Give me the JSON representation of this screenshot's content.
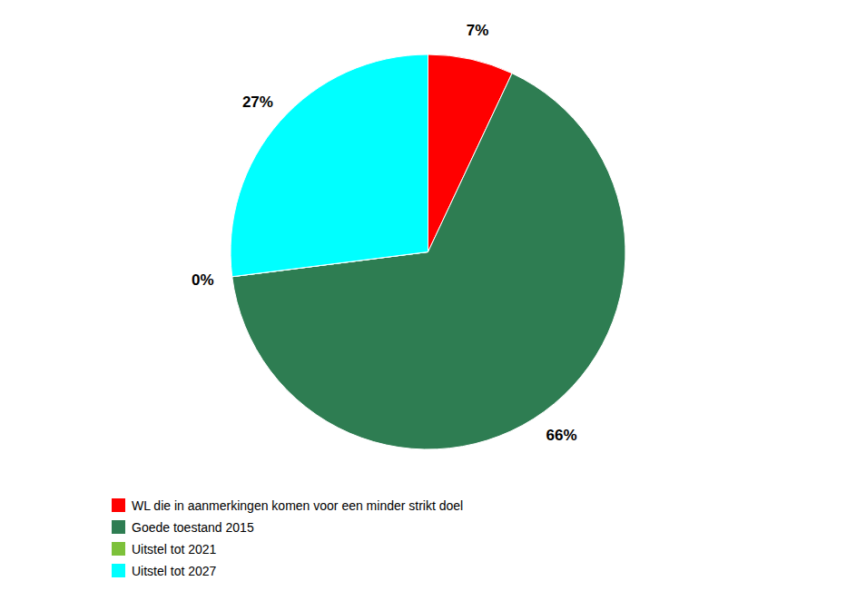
{
  "chart_data": {
    "type": "pie",
    "categories": [
      "WL die in aanmerkingen komen voor een minder strikt doel",
      "Goede toestand 2015",
      "Uitstel tot 2021",
      "Uitstel tot 2027"
    ],
    "values": [
      7,
      66,
      0,
      27
    ],
    "value_labels": [
      "7%",
      "66%",
      "0%",
      "27%"
    ],
    "colors": [
      "#FF0000",
      "#2E7D52",
      "#7DC13A",
      "#00FFFF"
    ],
    "data_labels": true,
    "legend": "bottom"
  }
}
